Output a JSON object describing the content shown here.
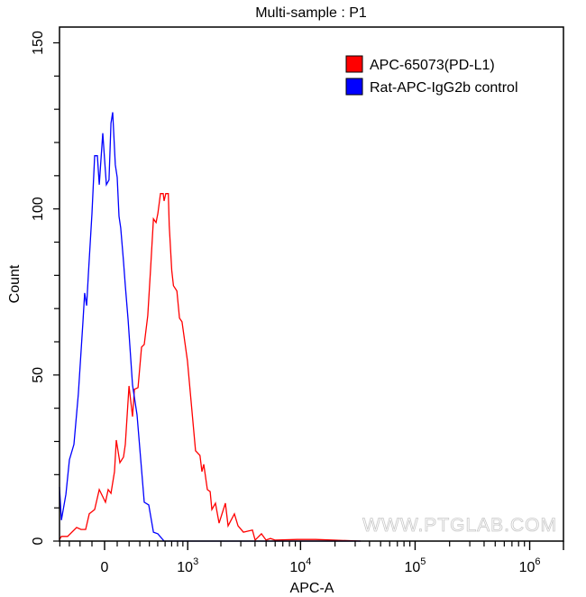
{
  "chart_data": {
    "type": "line",
    "title": "Multi-sample : P1",
    "xlabel": "APC-A",
    "ylabel": "Count",
    "x_scale": "biexponential",
    "xlim": [
      -405,
      2000000
    ],
    "ylim": [
      0,
      155
    ],
    "y_ticks": [
      0,
      50,
      100,
      150
    ],
    "x_ticks": [
      {
        "value": 0,
        "label": "0",
        "sup": ""
      },
      {
        "value": 1000,
        "label": "10",
        "sup": "3"
      },
      {
        "value": 10000,
        "label": "10",
        "sup": "4"
      },
      {
        "value": 100000,
        "label": "10",
        "sup": "5"
      },
      {
        "value": 1000000,
        "label": "10",
        "sup": "6"
      }
    ],
    "grid": false,
    "legend_position": "top-right",
    "watermark": "WWW.PTGLAB.COM",
    "series": [
      {
        "name": "APC-65073(PD-L1)",
        "color": "#ff0000",
        "points": [
          [
            -415,
            0.5
          ],
          [
            -383,
            1.4
          ],
          [
            -317,
            1.4
          ],
          [
            -231,
            4.1
          ],
          [
            -191,
            3.5
          ],
          [
            -152,
            3.5
          ],
          [
            -122,
            8.2
          ],
          [
            -78,
            9.5
          ],
          [
            -42,
            15.5
          ],
          [
            7,
            11.7
          ],
          [
            28,
            15.5
          ],
          [
            50,
            14.4
          ],
          [
            78,
            20.9
          ],
          [
            93,
            30.4
          ],
          [
            122,
            23.6
          ],
          [
            152,
            25.3
          ],
          [
            167,
            29.1
          ],
          [
            199,
            46.7
          ],
          [
            231,
            37.5
          ],
          [
            248,
            45.7
          ],
          [
            282,
            46.2
          ],
          [
            317,
            58.4
          ],
          [
            345,
            59.2
          ],
          [
            383,
            67.9
          ],
          [
            393,
            72.8
          ],
          [
            415,
            82.3
          ],
          [
            447,
            97.0
          ],
          [
            479,
            95.9
          ],
          [
            502,
            98.6
          ],
          [
            536,
            104.6
          ],
          [
            573,
            104.6
          ],
          [
            585,
            102.4
          ],
          [
            610,
            104.6
          ],
          [
            648,
            104.6
          ],
          [
            661,
            95.1
          ],
          [
            702,
            81.5
          ],
          [
            729,
            76.9
          ],
          [
            788,
            75.3
          ],
          [
            835,
            67.1
          ],
          [
            884,
            66.0
          ],
          [
            994,
            54.3
          ],
          [
            1182,
            27.2
          ],
          [
            1298,
            25.8
          ],
          [
            1352,
            20.9
          ],
          [
            1404,
            23.1
          ],
          [
            1513,
            15.5
          ],
          [
            1602,
            14.9
          ],
          [
            1662,
            9.5
          ],
          [
            1790,
            11.4
          ],
          [
            1928,
            5.4
          ],
          [
            2193,
            11.4
          ],
          [
            2315,
            4.6
          ],
          [
            2633,
            8.2
          ],
          [
            2834,
            4.6
          ],
          [
            3163,
            2.7
          ],
          [
            3794,
            3.3
          ],
          [
            4009,
            0.3
          ],
          [
            4554,
            2.2
          ],
          [
            4990,
            0.3
          ],
          [
            5462,
            0.8
          ],
          [
            5983,
            0.3
          ],
          [
            9400,
            0.5
          ],
          [
            13500,
            0.5
          ],
          [
            19400,
            0.3
          ],
          [
            33500,
            0
          ]
        ]
      },
      {
        "name": "Rat-APC-IgG2b control",
        "color": "#0000ff",
        "points": [
          [
            -404,
            16.3
          ],
          [
            -383,
            6.3
          ],
          [
            -335,
            14.1
          ],
          [
            -299,
            24.5
          ],
          [
            -256,
            29.1
          ],
          [
            -215,
            44.3
          ],
          [
            -175,
            66.0
          ],
          [
            -160,
            74.7
          ],
          [
            -144,
            70.9
          ],
          [
            -129,
            80.7
          ],
          [
            -100,
            98.6
          ],
          [
            -78,
            116.0
          ],
          [
            -57,
            116.0
          ],
          [
            -42,
            107.3
          ],
          [
            -28,
            114.9
          ],
          [
            -14,
            122.8
          ],
          [
            0,
            114.9
          ],
          [
            14,
            107.3
          ],
          [
            35,
            108.7
          ],
          [
            50,
            125.8
          ],
          [
            64,
            129.1
          ],
          [
            85,
            113.3
          ],
          [
            100,
            109.5
          ],
          [
            115,
            97.8
          ],
          [
            129,
            94.3
          ],
          [
            152,
            84.2
          ],
          [
            167,
            76.9
          ],
          [
            191,
            66.6
          ],
          [
            231,
            47.0
          ],
          [
            273,
            38.0
          ],
          [
            345,
            11.7
          ],
          [
            393,
            10.9
          ],
          [
            447,
            2.7
          ],
          [
            502,
            2.2
          ],
          [
            585,
            0
          ],
          [
            33500,
            0
          ]
        ]
      }
    ]
  }
}
